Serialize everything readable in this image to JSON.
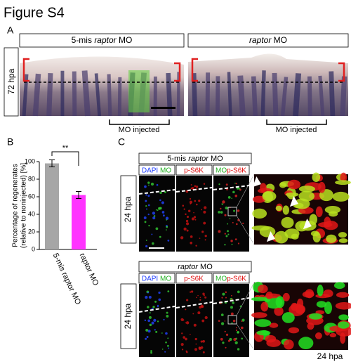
{
  "figure_title": "Figure S4",
  "panel_a": {
    "letter": "A",
    "time": "72 hpa",
    "images": [
      {
        "title": [
          "5-mis ",
          "raptor",
          " MO"
        ],
        "note": "MO injected"
      },
      {
        "title": [
          "raptor",
          " MO"
        ],
        "note": "MO injected"
      }
    ]
  },
  "panel_b": {
    "letter": "B",
    "significance": "**"
  },
  "chart_data": {
    "type": "bar",
    "y_label": [
      "Percentage of regenerates",
      "(relative to noninjected) [%]"
    ],
    "categories": [
      "5-mis raptor MO",
      "raptor MO"
    ],
    "values": [
      98,
      62
    ],
    "errors": [
      4,
      4
    ],
    "colors": [
      "#a6a6a6",
      "#ff33ff"
    ],
    "ylim": [
      0,
      100
    ],
    "yticks": [
      0,
      20,
      40,
      60,
      80,
      100
    ]
  },
  "panel_c": {
    "letter": "C",
    "footer": "24 hpa",
    "rows": [
      {
        "title": [
          "5-mis ",
          "raptor",
          " MO"
        ],
        "time": "24 hpa",
        "labels": [
          [
            "DAPI",
            " MO"
          ],
          [
            "p-S6K"
          ],
          [
            "MO",
            "p-S6K"
          ]
        ]
      },
      {
        "title": [
          "raptor",
          " MO"
        ],
        "time": "24 hpa",
        "labels": [
          [
            "DAPI",
            " MO"
          ],
          [
            "p-S6K"
          ],
          [
            "MO",
            "p-S6K"
          ]
        ]
      }
    ]
  }
}
